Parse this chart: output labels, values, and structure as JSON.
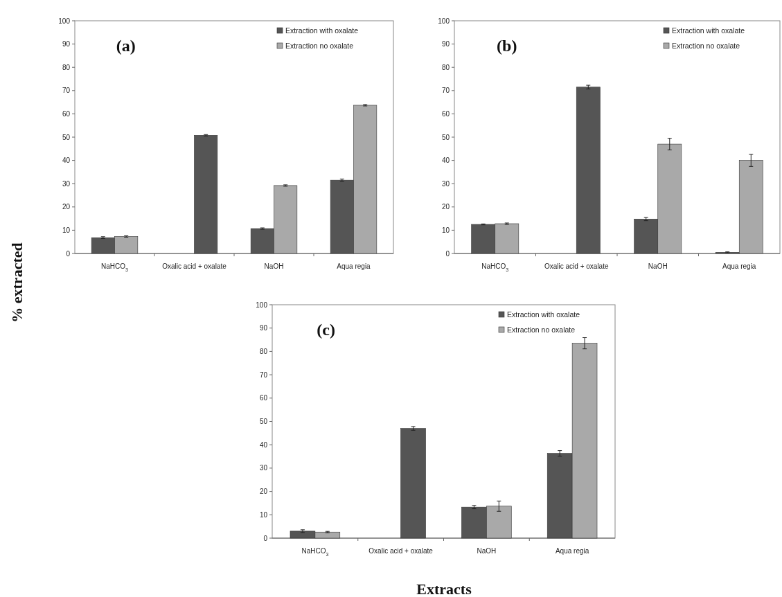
{
  "chart_data": [
    {
      "type": "bar",
      "title": "(a)",
      "ylabel": "% extracted",
      "categories": [
        "NaHCO$_{3}$",
        "Oxalic acid + oxalate",
        "NaOH",
        "Aqua regia"
      ],
      "ylim": [
        0,
        100
      ],
      "yticks": [
        0,
        10,
        20,
        30,
        40,
        50,
        60,
        70,
        80,
        90,
        100
      ],
      "legend": "top right",
      "series": [
        {
          "name": "Extraction with oxalate",
          "color": "#555555",
          "values": [
            6.8,
            null,
            10.7,
            31.5
          ],
          "errors": [
            0.4,
            null,
            0.3,
            0.5
          ]
        },
        {
          "name": "Extraction no oxalate",
          "color": "#a9a9a9",
          "colors": [
            "#a9a9a9",
            "#555555",
            "#a9a9a9",
            "#a9a9a9"
          ],
          "values": [
            7.3,
            50.8,
            29.2,
            63.7
          ],
          "errors": [
            0.3,
            0.3,
            0.3,
            0.3
          ]
        }
      ]
    },
    {
      "type": "bar",
      "title": "(b)",
      "categories": [
        "NaHCO$_{3}$",
        "Oxalic acid + oxalate",
        "NaOH",
        "Aqua regia"
      ],
      "ylim": [
        0,
        100
      ],
      "yticks": [
        0,
        10,
        20,
        30,
        40,
        50,
        60,
        70,
        80,
        90,
        100
      ],
      "legend": "top right",
      "series": [
        {
          "name": "Extraction with oxalate",
          "color": "#555555",
          "values": [
            12.5,
            null,
            14.8,
            0.5
          ],
          "errors": [
            0.2,
            null,
            0.7,
            0.2
          ]
        },
        {
          "name": "Extraction no oxalate",
          "color": "#a9a9a9",
          "colors": [
            "#a9a9a9",
            "#555555",
            "#a9a9a9",
            "#a9a9a9"
          ],
          "values": [
            12.8,
            71.5,
            47,
            40
          ],
          "errors": [
            0.3,
            0.8,
            2.5,
            2.6
          ]
        }
      ]
    },
    {
      "type": "bar",
      "title": "(c)",
      "xlabel": "Extracts",
      "categories": [
        "NaHCO$_{3}$",
        "Oxalic acid + oxalate",
        "NaOH",
        "Aqua regia"
      ],
      "ylim": [
        0,
        100
      ],
      "yticks": [
        0,
        10,
        20,
        30,
        40,
        50,
        60,
        70,
        80,
        90,
        100
      ],
      "legend": "top right",
      "series": [
        {
          "name": "Extraction with oxalate",
          "color": "#555555",
          "values": [
            3,
            null,
            13.3,
            36.3
          ],
          "errors": [
            0.6,
            null,
            0.7,
            1.2
          ]
        },
        {
          "name": "Extraction no oxalate",
          "color": "#a9a9a9",
          "colors": [
            "#a9a9a9",
            "#555555",
            "#a9a9a9",
            "#a9a9a9"
          ],
          "values": [
            2.6,
            47,
            13.7,
            83.5
          ],
          "errors": [
            0.3,
            0.8,
            2.2,
            2.4
          ]
        }
      ]
    }
  ]
}
